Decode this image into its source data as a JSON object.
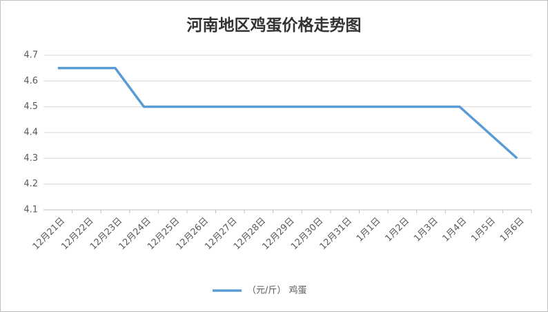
{
  "chart_data": {
    "type": "line",
    "title": "河南地区鸡蛋价格走势图",
    "categories": [
      "12月21日",
      "12月22日",
      "12月23日",
      "12月24日",
      "12月25日",
      "12月26日",
      "12月27日",
      "12月28日",
      "12月29日",
      "12月30日",
      "12月31日",
      "1月1日",
      "1月2日",
      "1月3日",
      "1月4日",
      "1月5日",
      "1月6日"
    ],
    "series": [
      {
        "name": "（元/斤） 鸡蛋",
        "color": "#5b9bd5",
        "values": [
          4.65,
          4.65,
          4.65,
          4.5,
          4.5,
          4.5,
          4.5,
          4.5,
          4.5,
          4.5,
          4.5,
          4.5,
          4.5,
          4.5,
          4.5,
          4.4,
          4.3
        ]
      }
    ],
    "ylim": [
      4.1,
      4.7
    ],
    "yticks": [
      4.1,
      4.2,
      4.3,
      4.4,
      4.5,
      4.6,
      4.7
    ],
    "grid": true,
    "legend": "bottom"
  }
}
